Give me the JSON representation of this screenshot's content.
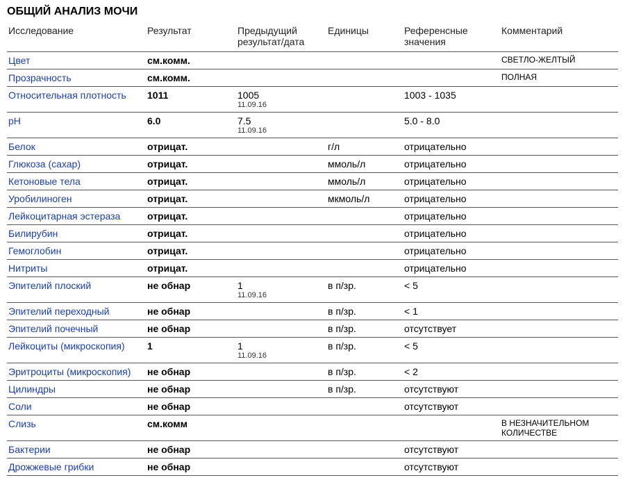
{
  "title": "ОБЩИЙ АНАЛИЗ МОЧИ",
  "columns": {
    "param": "Исследование",
    "result": "Результат",
    "prev": "Предыдущий результат/дата",
    "units": "Единицы",
    "ref": "Референсные значения",
    "comment": "Комментарий"
  },
  "rows": [
    {
      "param": "Цвет",
      "result": "см.комм.",
      "prev": "",
      "prev_date": "",
      "units": "",
      "ref": "",
      "comment": "СВЕТЛО-ЖЕЛТЫЙ"
    },
    {
      "param": "Прозрачность",
      "result": "см.комм.",
      "prev": "",
      "prev_date": "",
      "units": "",
      "ref": "",
      "comment": "ПОЛНАЯ"
    },
    {
      "param": "Относительная плотность",
      "result": "1011",
      "prev": "1005",
      "prev_date": "11.09.16",
      "units": "",
      "ref": "1003 - 1035",
      "comment": ""
    },
    {
      "param": "pH",
      "result": "6.0",
      "prev": "7.5",
      "prev_date": "11.09.16",
      "units": "",
      "ref": "5.0 - 8.0",
      "comment": ""
    },
    {
      "param": "Белок",
      "result": "отрицат.",
      "prev": "",
      "prev_date": "",
      "units": "г/л",
      "ref": "отрицательно",
      "comment": ""
    },
    {
      "param": "Глюкоза (сахар)",
      "result": "отрицат.",
      "prev": "",
      "prev_date": "",
      "units": "ммоль/л",
      "ref": "отрицательно",
      "comment": ""
    },
    {
      "param": "Кетоновые тела",
      "result": "отрицат.",
      "prev": "",
      "prev_date": "",
      "units": "ммоль/л",
      "ref": "отрицательно",
      "comment": ""
    },
    {
      "param": "Уробилиноген",
      "result": "отрицат.",
      "prev": "",
      "prev_date": "",
      "units": "мкмоль/л",
      "ref": "отрицательно",
      "comment": ""
    },
    {
      "param": "Лейкоцитарная эстераза",
      "result": "отрицат.",
      "prev": "",
      "prev_date": "",
      "units": "",
      "ref": "отрицательно",
      "comment": ""
    },
    {
      "param": "Билирубин",
      "result": "отрицат.",
      "prev": "",
      "prev_date": "",
      "units": "",
      "ref": "отрицательно",
      "comment": ""
    },
    {
      "param": "Гемоглобин",
      "result": "отрицат.",
      "prev": "",
      "prev_date": "",
      "units": "",
      "ref": "отрицательно",
      "comment": ""
    },
    {
      "param": "Нитриты",
      "result": "отрицат.",
      "prev": "",
      "prev_date": "",
      "units": "",
      "ref": "отрицательно",
      "comment": ""
    },
    {
      "param": "Эпителий плоский",
      "result": "не обнар",
      "prev": "1",
      "prev_date": "11.09.16",
      "units": "в п/зр.",
      "ref": "< 5",
      "comment": ""
    },
    {
      "param": "Эпителий переходный",
      "result": "не обнар",
      "prev": "",
      "prev_date": "",
      "units": "в п/зр.",
      "ref": "< 1",
      "comment": ""
    },
    {
      "param": "Эпителий почечный",
      "result": "не обнар",
      "prev": "",
      "prev_date": "",
      "units": "в п/зр.",
      "ref": "отсутствует",
      "comment": ""
    },
    {
      "param": "Лейкоциты (микроскопия)",
      "result": "1",
      "prev": "1",
      "prev_date": "11.09.16",
      "units": "в п/зр.",
      "ref": "< 5",
      "comment": ""
    },
    {
      "param": "Эритроциты (микроскопия)",
      "result": "не обнар",
      "prev": "",
      "prev_date": "",
      "units": "в п/зр.",
      "ref": "< 2",
      "comment": ""
    },
    {
      "param": "Цилиндры",
      "result": "не обнар",
      "prev": "",
      "prev_date": "",
      "units": "в п/зр.",
      "ref": "отсутствуют",
      "comment": ""
    },
    {
      "param": "Соли",
      "result": "не обнар",
      "prev": "",
      "prev_date": "",
      "units": "",
      "ref": "отсутствуют",
      "comment": ""
    },
    {
      "param": "Слизь",
      "result": "см.комм",
      "prev": "",
      "prev_date": "",
      "units": "",
      "ref": "",
      "comment": "В НЕЗНАЧИТЕЛЬНОМ КОЛИЧЕСТВЕ"
    },
    {
      "param": "Бактерии",
      "result": "не обнар",
      "prev": "",
      "prev_date": "",
      "units": "",
      "ref": "отсутствуют",
      "comment": ""
    },
    {
      "param": "Дрожжевые грибки",
      "result": "не обнар",
      "prev": "",
      "prev_date": "",
      "units": "",
      "ref": "отсутствуют",
      "comment": ""
    }
  ]
}
